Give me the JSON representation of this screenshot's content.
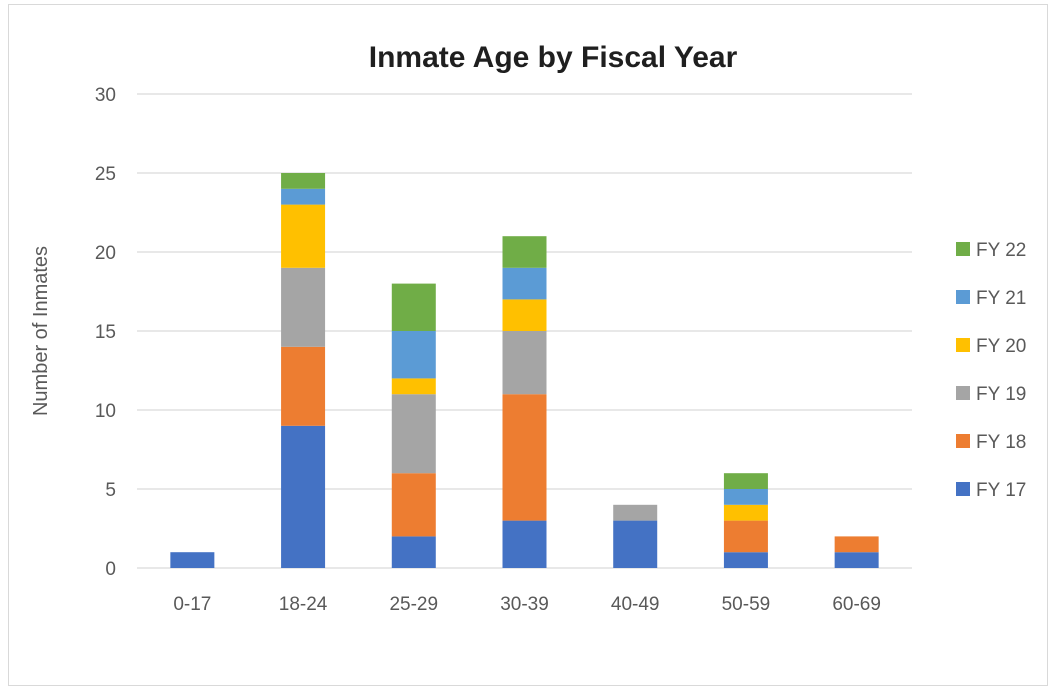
{
  "chart_data": {
    "type": "bar",
    "stacked": true,
    "title": "Inmate Age by Fiscal Year",
    "xlabel": "",
    "ylabel": "Number of Inmates",
    "ylim": [
      0,
      30
    ],
    "yticks": [
      0,
      5,
      10,
      15,
      20,
      25,
      30
    ],
    "grid": true,
    "legend_position": "right",
    "categories": [
      "0-17",
      "18-24",
      "25-29",
      "30-39",
      "40-49",
      "50-59",
      "60-69"
    ],
    "series": [
      {
        "name": "FY 17",
        "color": "#4472c4",
        "values": [
          1,
          9,
          2,
          3,
          3,
          1,
          1
        ]
      },
      {
        "name": "FY 18",
        "color": "#ed7d31",
        "values": [
          0,
          5,
          4,
          8,
          0,
          2,
          1
        ]
      },
      {
        "name": "FY 19",
        "color": "#a5a5a5",
        "values": [
          0,
          5,
          5,
          4,
          1,
          0,
          0
        ]
      },
      {
        "name": "FY 20",
        "color": "#ffc000",
        "values": [
          0,
          4,
          1,
          2,
          0,
          1,
          0
        ]
      },
      {
        "name": "FY 21",
        "color": "#5b9bd5",
        "values": [
          0,
          1,
          3,
          2,
          0,
          1,
          0
        ]
      },
      {
        "name": "FY 22",
        "color": "#70ad47",
        "values": [
          0,
          1,
          3,
          2,
          0,
          1,
          0
        ]
      }
    ]
  }
}
